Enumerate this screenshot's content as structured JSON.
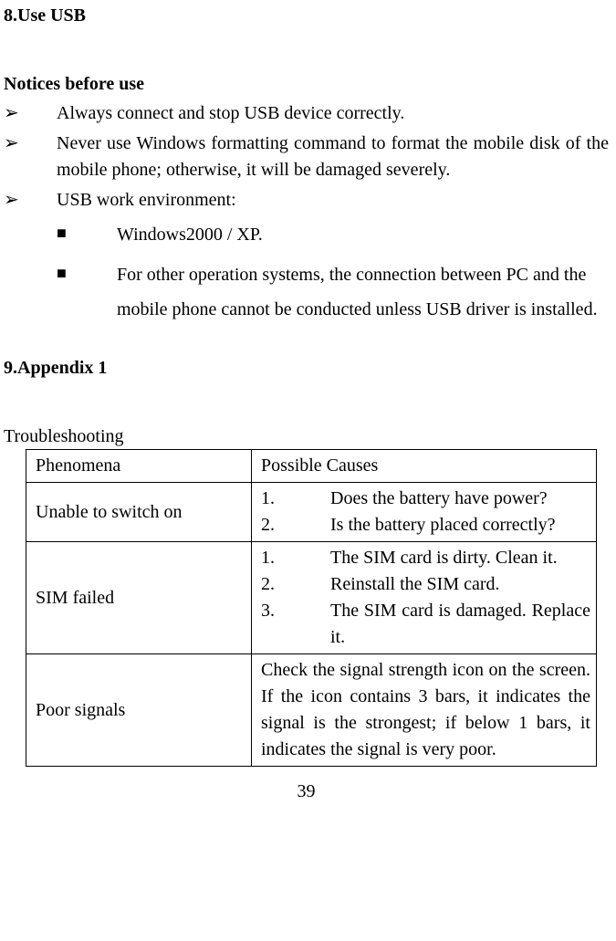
{
  "section8": {
    "title": "8.Use USB",
    "subtitle": "Notices before use",
    "bullets": {
      "b1": "Always connect and stop USB device correctly.",
      "b2": "Never use Windows formatting command to format the mobile disk of the mobile phone; otherwise, it will be damaged severely.",
      "b3": "USB work environment:"
    },
    "sub_bullets": {
      "s1": "Windows2000 / XP.",
      "s2": "For other operation systems, the connection between PC and the mobile phone cannot be conducted unless USB driver is installed."
    }
  },
  "section9": {
    "title": "9.Appendix 1",
    "caption": "Troubleshooting",
    "table": {
      "header": {
        "c1": "Phenomena",
        "c2": "Possible Causes"
      },
      "row1": {
        "c1": "Unable to switch on",
        "items": {
          "n1": "1.",
          "t1": "Does the battery have power?",
          "n2": "2.",
          "t2": "Is the battery placed correctly?"
        }
      },
      "row2": {
        "c1": "SIM failed",
        "items": {
          "n1": "1.",
          "t1": "The SIM card is dirty. Clean it.",
          "n2": "2.",
          "t2": "Reinstall the SIM card.",
          "n3": "3.",
          "t3": "The SIM card is damaged. Replace it."
        }
      },
      "row3": {
        "c1": "Poor signals",
        "c2": "Check the signal strength icon on the screen. If the icon contains 3 bars, it indicates the signal is the strongest; if below 1 bars, it indicates the signal is very poor."
      }
    }
  },
  "page_number": "39",
  "markers": {
    "arrow": "➢",
    "square": "■"
  }
}
